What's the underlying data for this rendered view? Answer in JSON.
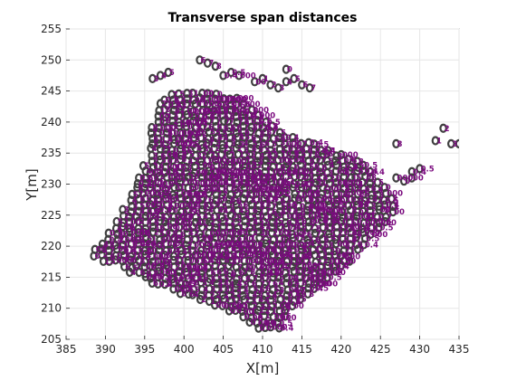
{
  "chart_data": {
    "type": "scatter",
    "title": "Transverse span distances",
    "xlabel": "X[m]",
    "ylabel": "Y[m]",
    "xlim": [
      385,
      435
    ],
    "ylim": [
      205,
      255
    ],
    "xticks": [
      385,
      390,
      395,
      400,
      405,
      410,
      415,
      420,
      425,
      430,
      435
    ],
    "yticks": [
      205,
      210,
      215,
      220,
      225,
      230,
      235,
      240,
      245,
      250,
      255
    ],
    "grid": true,
    "marker": "o",
    "marker_edge_color": "#404040",
    "label_color": "#7a0a7e",
    "region_outline": [
      [
        388,
        218.5
      ],
      [
        390,
        222
      ],
      [
        393,
        227.5
      ],
      [
        395,
        234
      ],
      [
        396,
        240
      ],
      [
        397,
        244.5
      ],
      [
        404,
        245
      ],
      [
        407,
        244
      ],
      [
        410,
        240.5
      ],
      [
        414,
        237.5
      ],
      [
        418,
        236
      ],
      [
        420,
        235
      ],
      [
        422,
        234
      ],
      [
        424,
        232
      ],
      [
        426,
        229
      ],
      [
        427,
        226
      ],
      [
        425,
        223
      ],
      [
        423,
        220
      ],
      [
        420,
        216
      ],
      [
        418,
        214
      ],
      [
        415,
        211.5
      ],
      [
        413,
        208.5
      ],
      [
        412,
        205.5
      ],
      [
        409,
        207
      ],
      [
        405,
        210
      ],
      [
        400,
        212
      ],
      [
        395,
        214.5
      ],
      [
        391,
        217
      ],
      [
        388.5,
        217.5
      ]
    ],
    "outlier_groups": [
      {
        "x": [
          396,
          397,
          398
        ],
        "y": [
          247,
          247.5,
          248
        ]
      },
      {
        "x": [
          402,
          403,
          404
        ],
        "y": [
          250,
          249.5,
          249
        ]
      },
      {
        "x": [
          405,
          406,
          407
        ],
        "y": [
          247.5,
          248,
          247.5
        ]
      },
      {
        "x": [
          413
        ],
        "y": [
          248.5
        ]
      },
      {
        "x": [
          409,
          410,
          411,
          412,
          413,
          414,
          415,
          416
        ],
        "y": [
          246.5,
          247,
          246,
          245.5,
          246.5,
          247,
          246,
          245.5
        ]
      },
      {
        "x": [
          427
        ],
        "y": [
          236.5
        ]
      },
      {
        "x": [
          429,
          430
        ],
        "y": [
          232,
          232.5
        ]
      },
      {
        "x": [
          427,
          428,
          429
        ],
        "y": [
          231,
          230.5,
          231
        ]
      },
      {
        "x": [
          432,
          433,
          434,
          435
        ],
        "y": [
          237,
          239,
          236.5,
          236.5
        ]
      }
    ],
    "labels": [
      "0",
      "00",
      "1",
      "2",
      "3",
      "4",
      "5",
      "6",
      "7",
      "8",
      "0.4",
      "0.5",
      "000"
    ]
  }
}
